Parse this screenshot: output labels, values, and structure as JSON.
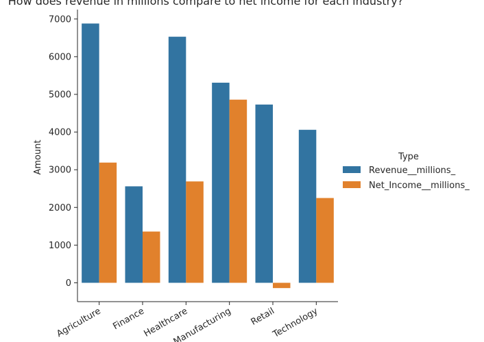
{
  "chart_data": {
    "type": "bar",
    "title": "How does revenue in millions compare to net income for each industry?",
    "xlabel": "",
    "ylabel": "Amount",
    "categories": [
      "Agriculture",
      "Finance",
      "Healthcare",
      "Manufacturing",
      "Retail",
      "Technology"
    ],
    "series": [
      {
        "name": "Revenue__millions_",
        "color": "#3274a1",
        "values": [
          6880,
          2560,
          6530,
          5310,
          4730,
          4060
        ]
      },
      {
        "name": "Net_Income__millions_",
        "color": "#e1812c",
        "values": [
          3190,
          1360,
          2690,
          4860,
          -140,
          2250
        ]
      }
    ],
    "ylim": [
      -500,
      7250
    ],
    "yticks": [
      0,
      1000,
      2000,
      3000,
      4000,
      5000,
      6000,
      7000
    ],
    "legend": {
      "title": "Type",
      "placement": "right"
    },
    "grid": false
  }
}
